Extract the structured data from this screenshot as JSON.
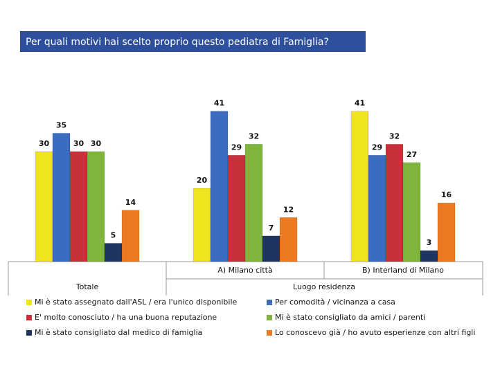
{
  "chart_data": {
    "type": "bar",
    "title": "Per quali motivi hai scelto proprio questo pediatra di Famiglia?",
    "categories": [
      null,
      "A) Milano città",
      "B) Interland di Milano"
    ],
    "header_labels": [
      "Totale",
      "Luogo residenza"
    ],
    "series": [
      {
        "name": "Mi è stato assegnato dall'ASL / era l'unico disponibile",
        "color": "#f0e41e",
        "values": [
          30,
          20,
          41
        ]
      },
      {
        "name": "Per comodità / vicinanza a casa",
        "color": "#3b6cc0",
        "values": [
          35,
          41,
          29
        ]
      },
      {
        "name": "E' molto conosciuto / ha una buona reputazione",
        "color": "#c8303a",
        "values": [
          30,
          29,
          32
        ]
      },
      {
        "name": "Mi è stato consigliato da amici / parenti",
        "color": "#7fb53d",
        "values": [
          30,
          32,
          27
        ]
      },
      {
        "name": "Mi è stato consigliato dal medico di famiglia",
        "color": "#1f3560",
        "values": [
          5,
          7,
          3
        ]
      },
      {
        "name": "Lo conoscevo già / ho avuto esperienze con altri figli",
        "color": "#ec7a23",
        "values": [
          14,
          12,
          16
        ]
      }
    ]
  }
}
